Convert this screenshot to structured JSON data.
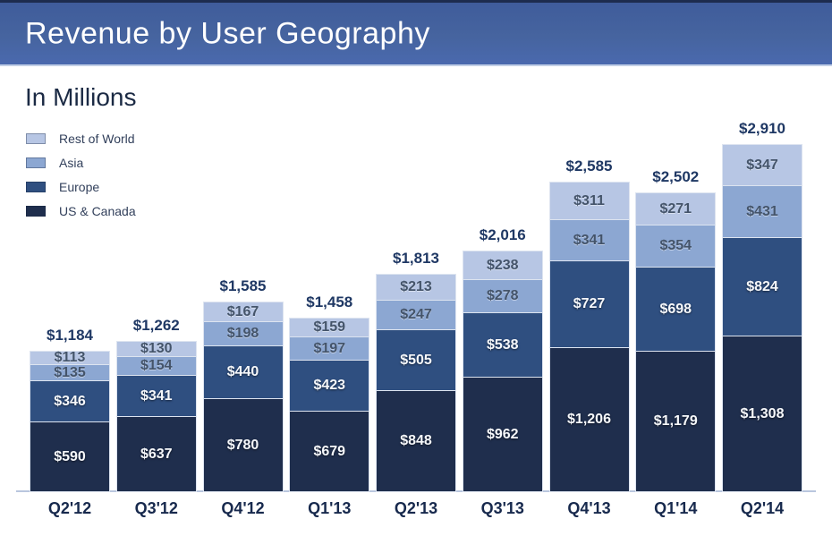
{
  "header": {
    "title": "Revenue by User Geography"
  },
  "subtitle": "In Millions",
  "legend": [
    {
      "label": "Rest of World",
      "color": "#b7c6e4"
    },
    {
      "label": "Asia",
      "color": "#8ca7d2"
    },
    {
      "label": "Europe",
      "color": "#2f4f80"
    },
    {
      "label": "US & Canada",
      "color": "#1f2e4d"
    }
  ],
  "chart_data": {
    "type": "bar",
    "stacked": true,
    "title": "Revenue by User Geography",
    "units_note": "In Millions",
    "value_prefix": "$",
    "grid": false,
    "legend_position": "top-left",
    "categories": [
      "Q2'12",
      "Q3'12",
      "Q4'12",
      "Q1'13",
      "Q2'13",
      "Q3'13",
      "Q4'13",
      "Q1'14",
      "Q2'14"
    ],
    "series": [
      {
        "name": "US & Canada",
        "color": "#1f2e4d",
        "text_style": "light-text",
        "values": [
          590,
          637,
          780,
          679,
          848,
          962,
          1206,
          1179,
          1308
        ],
        "labels": [
          "$590",
          "$637",
          "$780",
          "$679",
          "$848",
          "$962",
          "$1,206",
          "$1,179",
          "$1,308"
        ]
      },
      {
        "name": "Europe",
        "color": "#2f4f80",
        "text_style": "light-text",
        "values": [
          346,
          341,
          440,
          423,
          505,
          538,
          727,
          698,
          824
        ],
        "labels": [
          "$346",
          "$341",
          "$440",
          "$423",
          "$505",
          "$538",
          "$727",
          "$698",
          "$824"
        ]
      },
      {
        "name": "Asia",
        "color": "#8ca7d2",
        "text_style": "dark-text",
        "values": [
          135,
          154,
          198,
          197,
          247,
          278,
          341,
          354,
          431
        ],
        "labels": [
          "$135",
          "$154",
          "$198",
          "$197",
          "$247",
          "$278",
          "$341",
          "$354",
          "$431"
        ]
      },
      {
        "name": "Rest of World",
        "color": "#b7c6e4",
        "text_style": "dark-text",
        "values": [
          113,
          130,
          167,
          159,
          213,
          238,
          311,
          271,
          347
        ],
        "labels": [
          "$113",
          "$130",
          "$167",
          "$159",
          "$213",
          "$238",
          "$311",
          "$271",
          "$347"
        ]
      }
    ],
    "totals": [
      1184,
      1262,
      1585,
      1458,
      1813,
      2016,
      2585,
      2502,
      2910
    ],
    "total_labels": [
      "$1,184",
      "$1,262",
      "$1,585",
      "$1,458",
      "$1,813",
      "$2,016",
      "$2,585",
      "$2,502",
      "$2,910"
    ]
  }
}
